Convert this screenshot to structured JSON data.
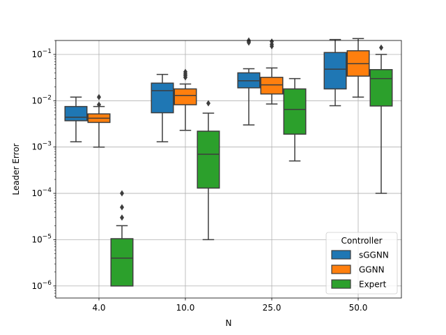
{
  "chart_data": {
    "type": "box",
    "xlabel": "N",
    "ylabel": "Leader Error",
    "yscale": "log",
    "ylim": [
      5.5e-07,
      0.2
    ],
    "grid": true,
    "categories": [
      "4.0",
      "10.0",
      "25.0",
      "50.0"
    ],
    "y_ticks": [
      {
        "value": 1e-06,
        "base": "10",
        "exp": "−6"
      },
      {
        "value": 1e-05,
        "base": "10",
        "exp": "−5"
      },
      {
        "value": 0.0001,
        "base": "10",
        "exp": "−4"
      },
      {
        "value": 0.001,
        "base": "10",
        "exp": "−3"
      },
      {
        "value": 0.01,
        "base": "10",
        "exp": "−2"
      },
      {
        "value": 0.1,
        "base": "10",
        "exp": "−1"
      }
    ],
    "legend": {
      "title": "Controller",
      "position": "lower-right"
    },
    "series": [
      {
        "name": "sGGNN",
        "color": "#1f77b4",
        "boxes": [
          {
            "whislo": 0.0013,
            "q1": 0.0037,
            "med": 0.0044,
            "q3": 0.0075,
            "whishi": 0.012,
            "fliers": []
          },
          {
            "whislo": 0.0013,
            "q1": 0.0055,
            "med": 0.0165,
            "q3": 0.024,
            "whishi": 0.037,
            "fliers": []
          },
          {
            "whislo": 0.003,
            "q1": 0.019,
            "med": 0.027,
            "q3": 0.04,
            "whishi": 0.049,
            "fliers": [
              0.18,
              0.19,
              0.2
            ]
          },
          {
            "whislo": 0.0078,
            "q1": 0.018,
            "med": 0.048,
            "q3": 0.11,
            "whishi": 0.21,
            "fliers": []
          }
        ]
      },
      {
        "name": "GGNN",
        "color": "#ff7f0e",
        "boxes": [
          {
            "whislo": 0.001,
            "q1": 0.0034,
            "med": 0.0042,
            "q3": 0.0052,
            "whishi": 0.0075,
            "fliers": [
              0.0082,
              0.012
            ]
          },
          {
            "whislo": 0.0023,
            "q1": 0.0082,
            "med": 0.013,
            "q3": 0.018,
            "whishi": 0.023,
            "fliers": [
              0.032,
              0.035,
              0.038,
              0.042
            ]
          },
          {
            "whislo": 0.0085,
            "q1": 0.014,
            "med": 0.022,
            "q3": 0.032,
            "whishi": 0.051,
            "fliers": [
              0.15,
              0.165,
              0.19
            ]
          },
          {
            "whislo": 0.012,
            "q1": 0.034,
            "med": 0.063,
            "q3": 0.12,
            "whishi": 0.22,
            "fliers": []
          }
        ]
      },
      {
        "name": "Expert",
        "color": "#2ca02c",
        "boxes": [
          {
            "whislo": 1e-06,
            "q1": 1e-06,
            "med": 4e-06,
            "q3": 1.05e-05,
            "whishi": 2e-05,
            "fliers": [
              3e-05,
              5e-05,
              0.0001
            ]
          },
          {
            "whislo": 1e-05,
            "q1": 0.00013,
            "med": 0.0007,
            "q3": 0.0022,
            "whishi": 0.0054,
            "fliers": [
              0.0088
            ]
          },
          {
            "whislo": 0.0005,
            "q1": 0.0019,
            "med": 0.0065,
            "q3": 0.018,
            "whishi": 0.03,
            "fliers": []
          },
          {
            "whislo": 0.0001,
            "q1": 0.0077,
            "med": 0.03,
            "q3": 0.047,
            "whishi": 0.1,
            "fliers": [
              0.14
            ]
          }
        ]
      }
    ]
  }
}
